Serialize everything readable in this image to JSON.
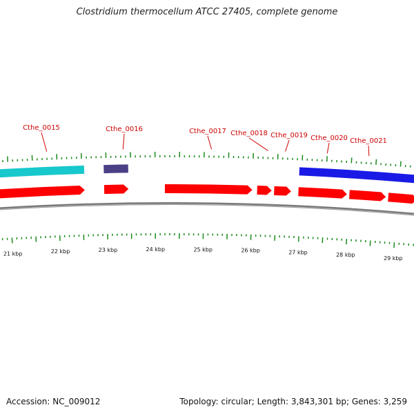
{
  "title": "Clostridium thermocellum ATCC 27405, complete genome",
  "footer": {
    "accession": "Accession: NC_009012",
    "stats": "Topology: circular; Length: 3,843,301 bp; Genes: 3,259"
  },
  "colors": {
    "cds": "#ff0000",
    "cyan_feature": "#17c8cc",
    "purple_feature": "#4b3f86",
    "blue_feature": "#1a1ae6",
    "backbone": "#7a7a7a",
    "tick": "#1a8a1a",
    "label": "#cc0000"
  },
  "gene_labels": [
    {
      "name": "Cthe_0015",
      "kb": 21.8
    },
    {
      "name": "Cthe_0016",
      "kb": 23.35
    },
    {
      "name": "Cthe_0017",
      "kb": 25.15
    },
    {
      "name": "Cthe_0018",
      "kb": 26.3
    },
    {
      "name": "Cthe_0019",
      "kb": 26.65
    },
    {
      "name": "Cthe_0020",
      "kb": 27.5
    },
    {
      "name": "Cthe_0021",
      "kb": 28.35
    }
  ],
  "kbp_labels": [
    "21 kbp",
    "22 kbp",
    "23 kbp",
    "24 kbp",
    "25 kbp",
    "26 kbp",
    "27 kbp",
    "28 kbp",
    "29 kbp"
  ],
  "features_outer": [
    {
      "name": "cyan",
      "start": 20.6,
      "end": 22.55,
      "color_key": "cyan_feature"
    },
    {
      "name": "purple",
      "start": 22.95,
      "end": 23.45,
      "color_key": "purple_feature"
    },
    {
      "name": "blue",
      "start": 26.95,
      "end": 29.4,
      "color_key": "blue_feature"
    }
  ],
  "cds_arrows": [
    {
      "start": 20.6,
      "end": 22.55
    },
    {
      "start": 22.95,
      "end": 23.45
    },
    {
      "start": 24.2,
      "end": 26.0
    },
    {
      "start": 26.1,
      "end": 26.4
    },
    {
      "start": 26.45,
      "end": 26.8
    },
    {
      "start": 26.95,
      "end": 27.95
    },
    {
      "start": 28.0,
      "end": 28.75
    },
    {
      "start": 28.8,
      "end": 29.4
    }
  ]
}
